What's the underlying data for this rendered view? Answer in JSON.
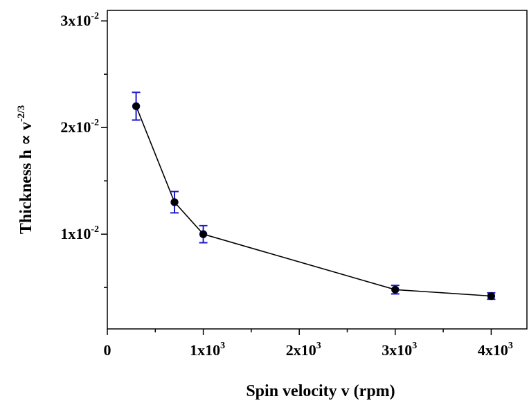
{
  "chart_data": {
    "type": "line",
    "xlabel": "Spin velocity v (rpm)",
    "ylabel": {
      "prefix": "Thickness h ",
      "symbol": "∝",
      "var": " v",
      "exponent": "-2/3"
    },
    "xlim": [
      0,
      4400
    ],
    "ylim": [
      0.0012,
      0.03
    ],
    "grid": false,
    "x_ticks": [
      {
        "value": 0,
        "base": "0",
        "exp": ""
      },
      {
        "value": 1000,
        "base": "1x10",
        "exp": "3"
      },
      {
        "value": 2000,
        "base": "2x10",
        "exp": "3"
      },
      {
        "value": 3000,
        "base": "3x10",
        "exp": "3"
      },
      {
        "value": 4000,
        "base": "4x10",
        "exp": "3"
      }
    ],
    "y_ticks": [
      {
        "value": 0.01,
        "base": "1x10",
        "exp": "-2"
      },
      {
        "value": 0.02,
        "base": "2x10",
        "exp": "-2"
      },
      {
        "value": 0.03,
        "base": "3x10",
        "exp": "-2"
      }
    ],
    "y_minor_ticks": [
      0.005,
      0.015,
      0.025
    ],
    "x_minor_ticks": [
      500,
      1500,
      2500,
      3500
    ],
    "series": [
      {
        "x": [
          300,
          700,
          1000,
          3000,
          4000
        ],
        "y": [
          0.022,
          0.013,
          0.01,
          0.0048,
          0.0042
        ],
        "error": [
          0.0013,
          0.001,
          0.0008,
          0.0004,
          0.0003
        ],
        "marker_color": "#000000",
        "line_color": "#000000",
        "error_color": "#1a1acc"
      }
    ]
  }
}
